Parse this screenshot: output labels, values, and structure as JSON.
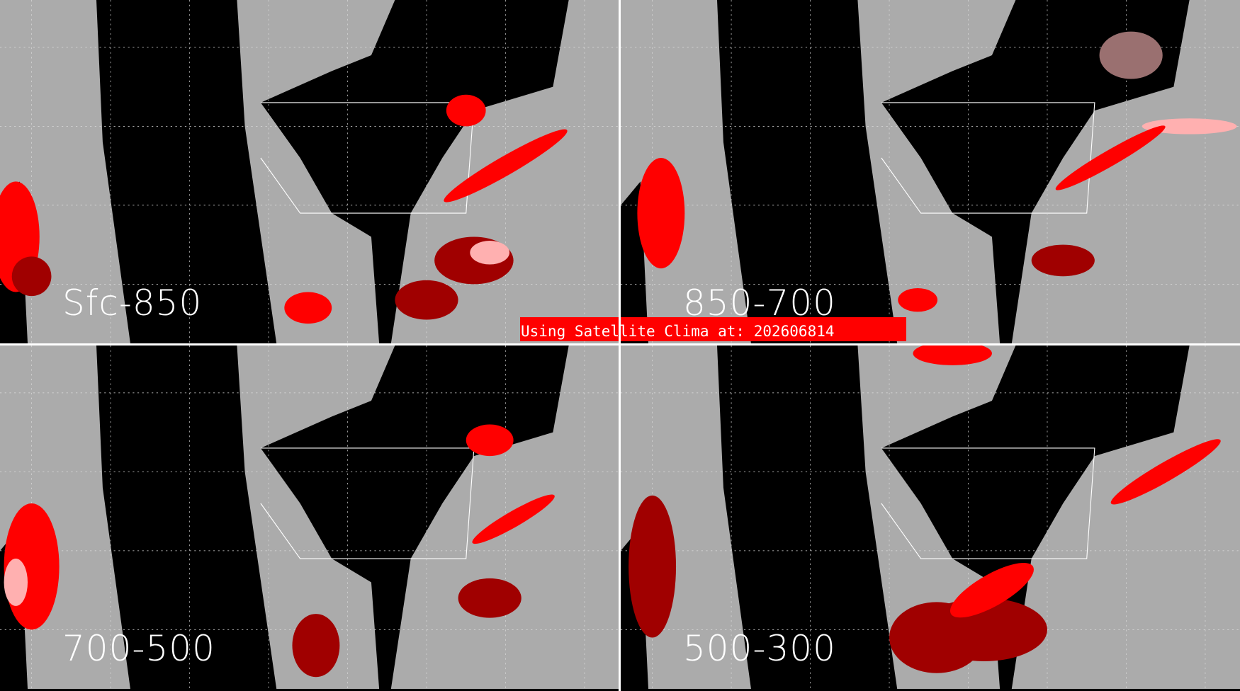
{
  "panels": [
    {
      "label": "Sfc-850"
    },
    {
      "label": "850-700"
    },
    {
      "label": "700-500"
    },
    {
      "label": "500-300"
    }
  ],
  "banner": {
    "text": "Using Satellite Clima at: 202606814"
  },
  "colors": {
    "background": "#ababab",
    "no_data": "#000000",
    "cloud_high": "#ff0000",
    "cloud_mid": "#a00000",
    "cloud_low": "#9a7070",
    "cloud_light": "#ffb0b0",
    "borders": "#ffffff",
    "banner": "#ff0000"
  }
}
